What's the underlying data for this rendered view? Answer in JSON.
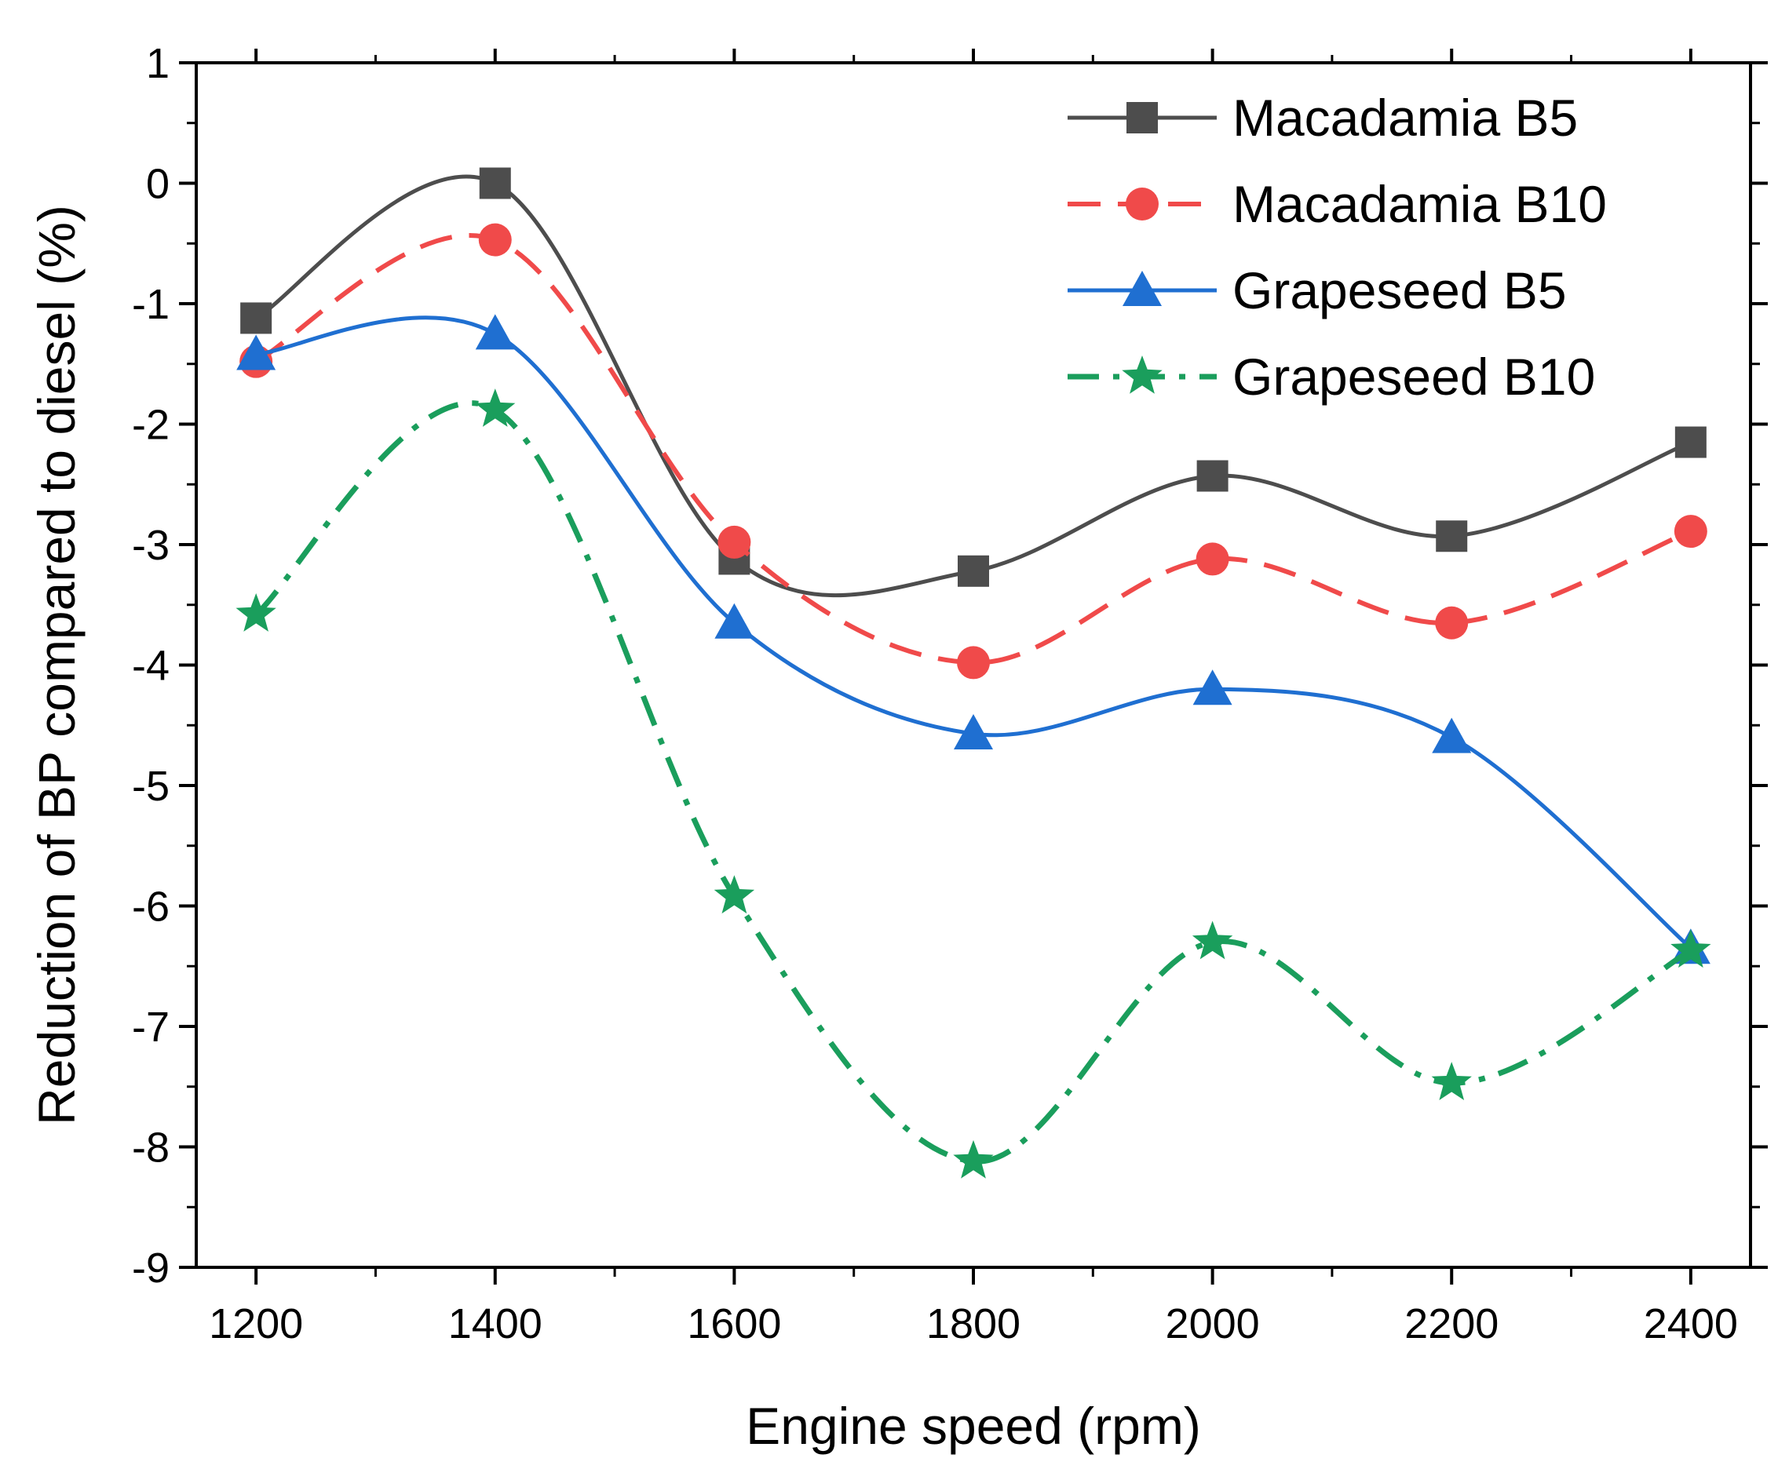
{
  "chart_data": {
    "type": "line",
    "title": "",
    "xlabel": "Engine speed (rpm)",
    "ylabel": "Reduction of BP compared to diesel (%)",
    "xlim": [
      1150,
      2450
    ],
    "ylim": [
      -9,
      1
    ],
    "xticks": [
      1200,
      1400,
      1600,
      1800,
      2000,
      2200,
      2400
    ],
    "xtick_labels": [
      "1200",
      "1400",
      "1600",
      "1800",
      "2000",
      "2200",
      "2400"
    ],
    "yticks": [
      -9,
      -8,
      -7,
      -6,
      -5,
      -4,
      -3,
      -2,
      -1,
      0,
      1
    ],
    "ytick_labels": [
      "-9",
      "-8",
      "-7",
      "-6",
      "-5",
      "-4",
      "-3",
      "-2",
      "-1",
      "0",
      "1"
    ],
    "grid": false,
    "legend_position": "top-right",
    "x": [
      1200,
      1400,
      1600,
      1800,
      2000,
      2200,
      2400
    ],
    "series": [
      {
        "name": "Macadamia B5",
        "values": [
          -1.12,
          0.0,
          -3.12,
          -3.22,
          -2.43,
          -2.93,
          -2.15
        ],
        "color": "#4d4d4d",
        "marker": "square",
        "dash": "solid"
      },
      {
        "name": "Macadamia B10",
        "values": [
          -1.48,
          -0.47,
          -2.98,
          -3.98,
          -3.12,
          -3.65,
          -2.89
        ],
        "color": "#f04a4a",
        "marker": "circle",
        "dash": "dashed"
      },
      {
        "name": "Grapeseed B5",
        "values": [
          -1.42,
          -1.25,
          -3.65,
          -4.57,
          -4.2,
          -4.6,
          -6.35
        ],
        "color": "#1f6fd1",
        "marker": "triangle",
        "dash": "solid"
      },
      {
        "name": "Grapeseed B10",
        "values": [
          -3.58,
          -1.88,
          -5.92,
          -8.12,
          -6.3,
          -7.47,
          -6.37
        ],
        "color": "#1a9e5c",
        "marker": "star",
        "dash": "dashdot"
      }
    ]
  }
}
